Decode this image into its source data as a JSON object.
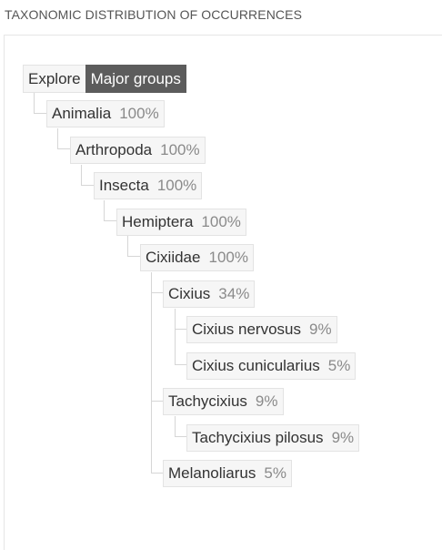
{
  "section_title": "TAXONOMIC DISTRIBUTION OF OCCURRENCES",
  "explore": {
    "label": "Explore",
    "mode": "Major groups"
  },
  "tree": [
    {
      "name": "Animalia",
      "pct": "100%"
    },
    {
      "name": "Arthropoda",
      "pct": "100%"
    },
    {
      "name": "Insecta",
      "pct": "100%"
    },
    {
      "name": "Hemiptera",
      "pct": "100%"
    },
    {
      "name": "Cixiidae",
      "pct": "100%"
    },
    {
      "name": "Cixius",
      "pct": "34%"
    },
    {
      "name": "Cixius nervosus",
      "pct": "9%"
    },
    {
      "name": "Cixius cunicularius",
      "pct": "5%"
    },
    {
      "name": "Tachycixius",
      "pct": "9%"
    },
    {
      "name": "Tachycixius pilosus",
      "pct": "9%"
    },
    {
      "name": "Melanoliarus",
      "pct": "5%"
    }
  ]
}
